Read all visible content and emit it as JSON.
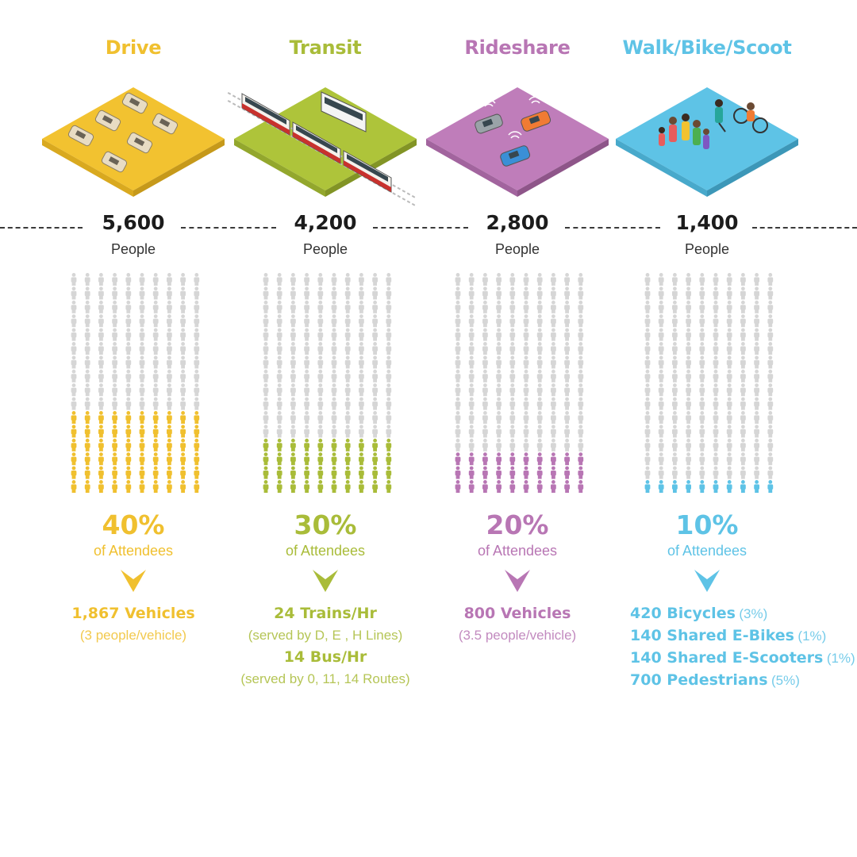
{
  "chart_data": {
    "type": "pictogram",
    "unit_people_per_icon": 56,
    "rows": 16,
    "cols": 10,
    "categories": [
      {
        "key": "drive",
        "name": "Drive",
        "color": "#f0c02f",
        "people": "5,600",
        "people_label": "People",
        "percent": "40%",
        "percent_label": "of Attendees",
        "share": 0.4,
        "details": [
          {
            "main": "1,867 Vehicles",
            "sub": ""
          },
          {
            "main": "",
            "sub": "(3 people/vehicle)"
          }
        ]
      },
      {
        "key": "transit",
        "name": "Transit",
        "color": "#a9bc39",
        "people": "4,200",
        "people_label": "People",
        "percent": "30%",
        "percent_label": "of Attendees",
        "share": 0.3,
        "details": [
          {
            "main": "24 Trains/Hr",
            "sub": ""
          },
          {
            "main": "",
            "sub": "(served by D, E , H Lines)"
          },
          {
            "main": "14 Bus/Hr",
            "sub": ""
          },
          {
            "main": "",
            "sub": "(served by 0, 11, 14 Routes)"
          }
        ]
      },
      {
        "key": "rideshare",
        "name": "Rideshare",
        "color": "#b876b4",
        "people": "2,800",
        "people_label": "People",
        "percent": "20%",
        "percent_label": "of Attendees",
        "share": 0.2,
        "details": [
          {
            "main": "800 Vehicles",
            "sub": ""
          },
          {
            "main": "",
            "sub": "(3.5 people/vehicle)"
          }
        ]
      },
      {
        "key": "walk",
        "name": "Walk/Bike/Scoot",
        "color": "#5ec3e6",
        "people": "1,400",
        "people_label": "People",
        "percent": "10%",
        "percent_label": "of Attendees",
        "share": 0.1,
        "details": [
          {
            "main": "420 Bicycles",
            "sub": "(3%)"
          },
          {
            "main": "140 Shared E-Bikes",
            "sub": "(1%)"
          },
          {
            "main": "140 Shared E-Scooters",
            "sub": "(1%)"
          },
          {
            "main": "700 Pedestrians",
            "sub": "(5%)"
          }
        ]
      }
    ],
    "inactive_color": "#d6d6d6"
  }
}
